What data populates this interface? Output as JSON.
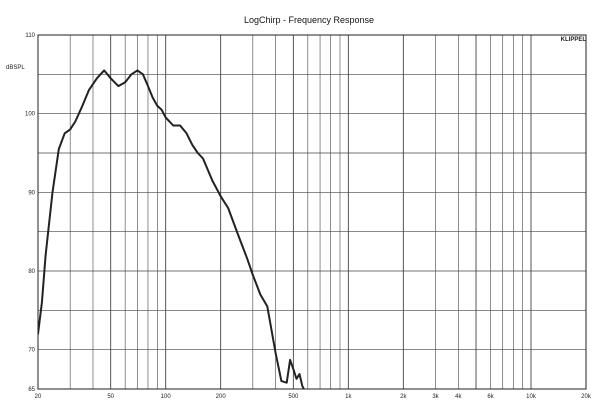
{
  "chart_data": {
    "type": "line",
    "title": "LogChirp - Frequency Response",
    "ylabel": "dBSPL",
    "badge": "KLIPPEL",
    "x_scale": "log",
    "xlim": [
      20,
      20000
    ],
    "ylim": [
      65,
      110
    ],
    "grid": true,
    "x_ticks": [
      {
        "value": 20,
        "label": "20"
      },
      {
        "value": 50,
        "label": "50"
      },
      {
        "value": 100,
        "label": "100"
      },
      {
        "value": 200,
        "label": "200"
      },
      {
        "value": 500,
        "label": "500"
      },
      {
        "value": 1000,
        "label": "1k"
      },
      {
        "value": 2000,
        "label": "2k"
      },
      {
        "value": 3000,
        "label": "3k"
      },
      {
        "value": 4000,
        "label": "4k"
      },
      {
        "value": 6000,
        "label": "6k"
      },
      {
        "value": 10000,
        "label": "10k"
      },
      {
        "value": 20000,
        "label": "20k"
      }
    ],
    "y_ticks": [
      {
        "value": 110,
        "label": "110"
      },
      {
        "value": 100,
        "label": "100"
      },
      {
        "value": 90,
        "label": "90"
      },
      {
        "value": 80,
        "label": "80"
      },
      {
        "value": 70,
        "label": "70"
      },
      {
        "value": 65,
        "label": "65"
      }
    ],
    "series": [
      {
        "color": "#222222",
        "x": [
          20,
          21,
          22,
          24,
          26,
          28,
          30,
          32,
          35,
          38,
          42,
          46,
          50,
          55,
          60,
          65,
          70,
          75,
          80,
          85,
          90,
          95,
          100,
          105,
          110,
          120,
          130,
          140,
          150,
          160,
          180,
          200,
          220,
          250,
          280,
          300,
          330,
          360,
          400,
          430,
          460,
          480,
          500,
          520,
          540,
          560,
          580,
          600,
          620,
          650
        ],
        "y": [
          72,
          76,
          82,
          90,
          95.5,
          97.5,
          98,
          99,
          101,
          103,
          104.5,
          105.5,
          104.5,
          103.5,
          104,
          105,
          105.5,
          105,
          103.5,
          102,
          101,
          100.5,
          99.5,
          99,
          98.5,
          98.5,
          97.5,
          96,
          95,
          94.3,
          91.5,
          89.5,
          88,
          84.5,
          81.5,
          79.5,
          77,
          75.5,
          69.5,
          66,
          65.8,
          68.7,
          67.5,
          66.3,
          66.9,
          65.4,
          64.7,
          64,
          63.3,
          62
        ]
      }
    ]
  }
}
